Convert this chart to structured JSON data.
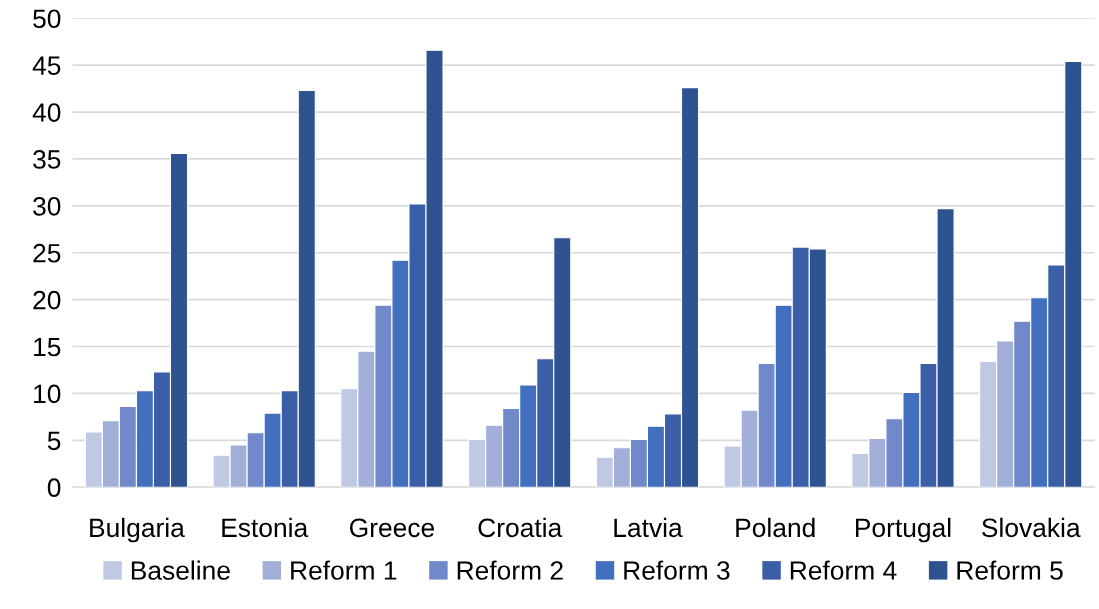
{
  "chart_data": {
    "type": "bar",
    "categories": [
      "Bulgaria",
      "Estonia",
      "Greece",
      "Croatia",
      "Latvia",
      "Poland",
      "Portugal",
      "Slovakia"
    ],
    "series": [
      {
        "name": "Baseline",
        "color": "#c0c9e4",
        "values": [
          5.9,
          3.4,
          10.5,
          5.1,
          3.2,
          4.4,
          3.6,
          13.4
        ]
      },
      {
        "name": "Reform 1",
        "color": "#a1afd9",
        "values": [
          7.1,
          4.5,
          14.5,
          6.6,
          4.2,
          8.2,
          5.2,
          15.6
        ]
      },
      {
        "name": "Reform 2",
        "color": "#7189cb",
        "values": [
          8.6,
          5.8,
          19.4,
          8.4,
          5.1,
          13.2,
          7.3,
          17.7
        ]
      },
      {
        "name": "Reform 3",
        "color": "#4270be",
        "values": [
          10.3,
          7.9,
          24.2,
          10.9,
          6.5,
          19.4,
          10.1,
          20.2
        ]
      },
      {
        "name": "Reform 4",
        "color": "#3a5fa6",
        "values": [
          12.3,
          10.3,
          30.2,
          13.7,
          7.8,
          25.6,
          13.2,
          23.7
        ]
      },
      {
        "name": "Reform 5",
        "color": "#2f5290",
        "values": [
          35.6,
          42.3,
          46.6,
          26.6,
          42.6,
          25.4,
          29.7,
          45.4
        ]
      }
    ],
    "ylim": [
      0,
      50
    ],
    "yticks": [
      0,
      5,
      10,
      15,
      20,
      25,
      30,
      35,
      40,
      45,
      50
    ],
    "grid": "y",
    "legend": "bottom"
  }
}
